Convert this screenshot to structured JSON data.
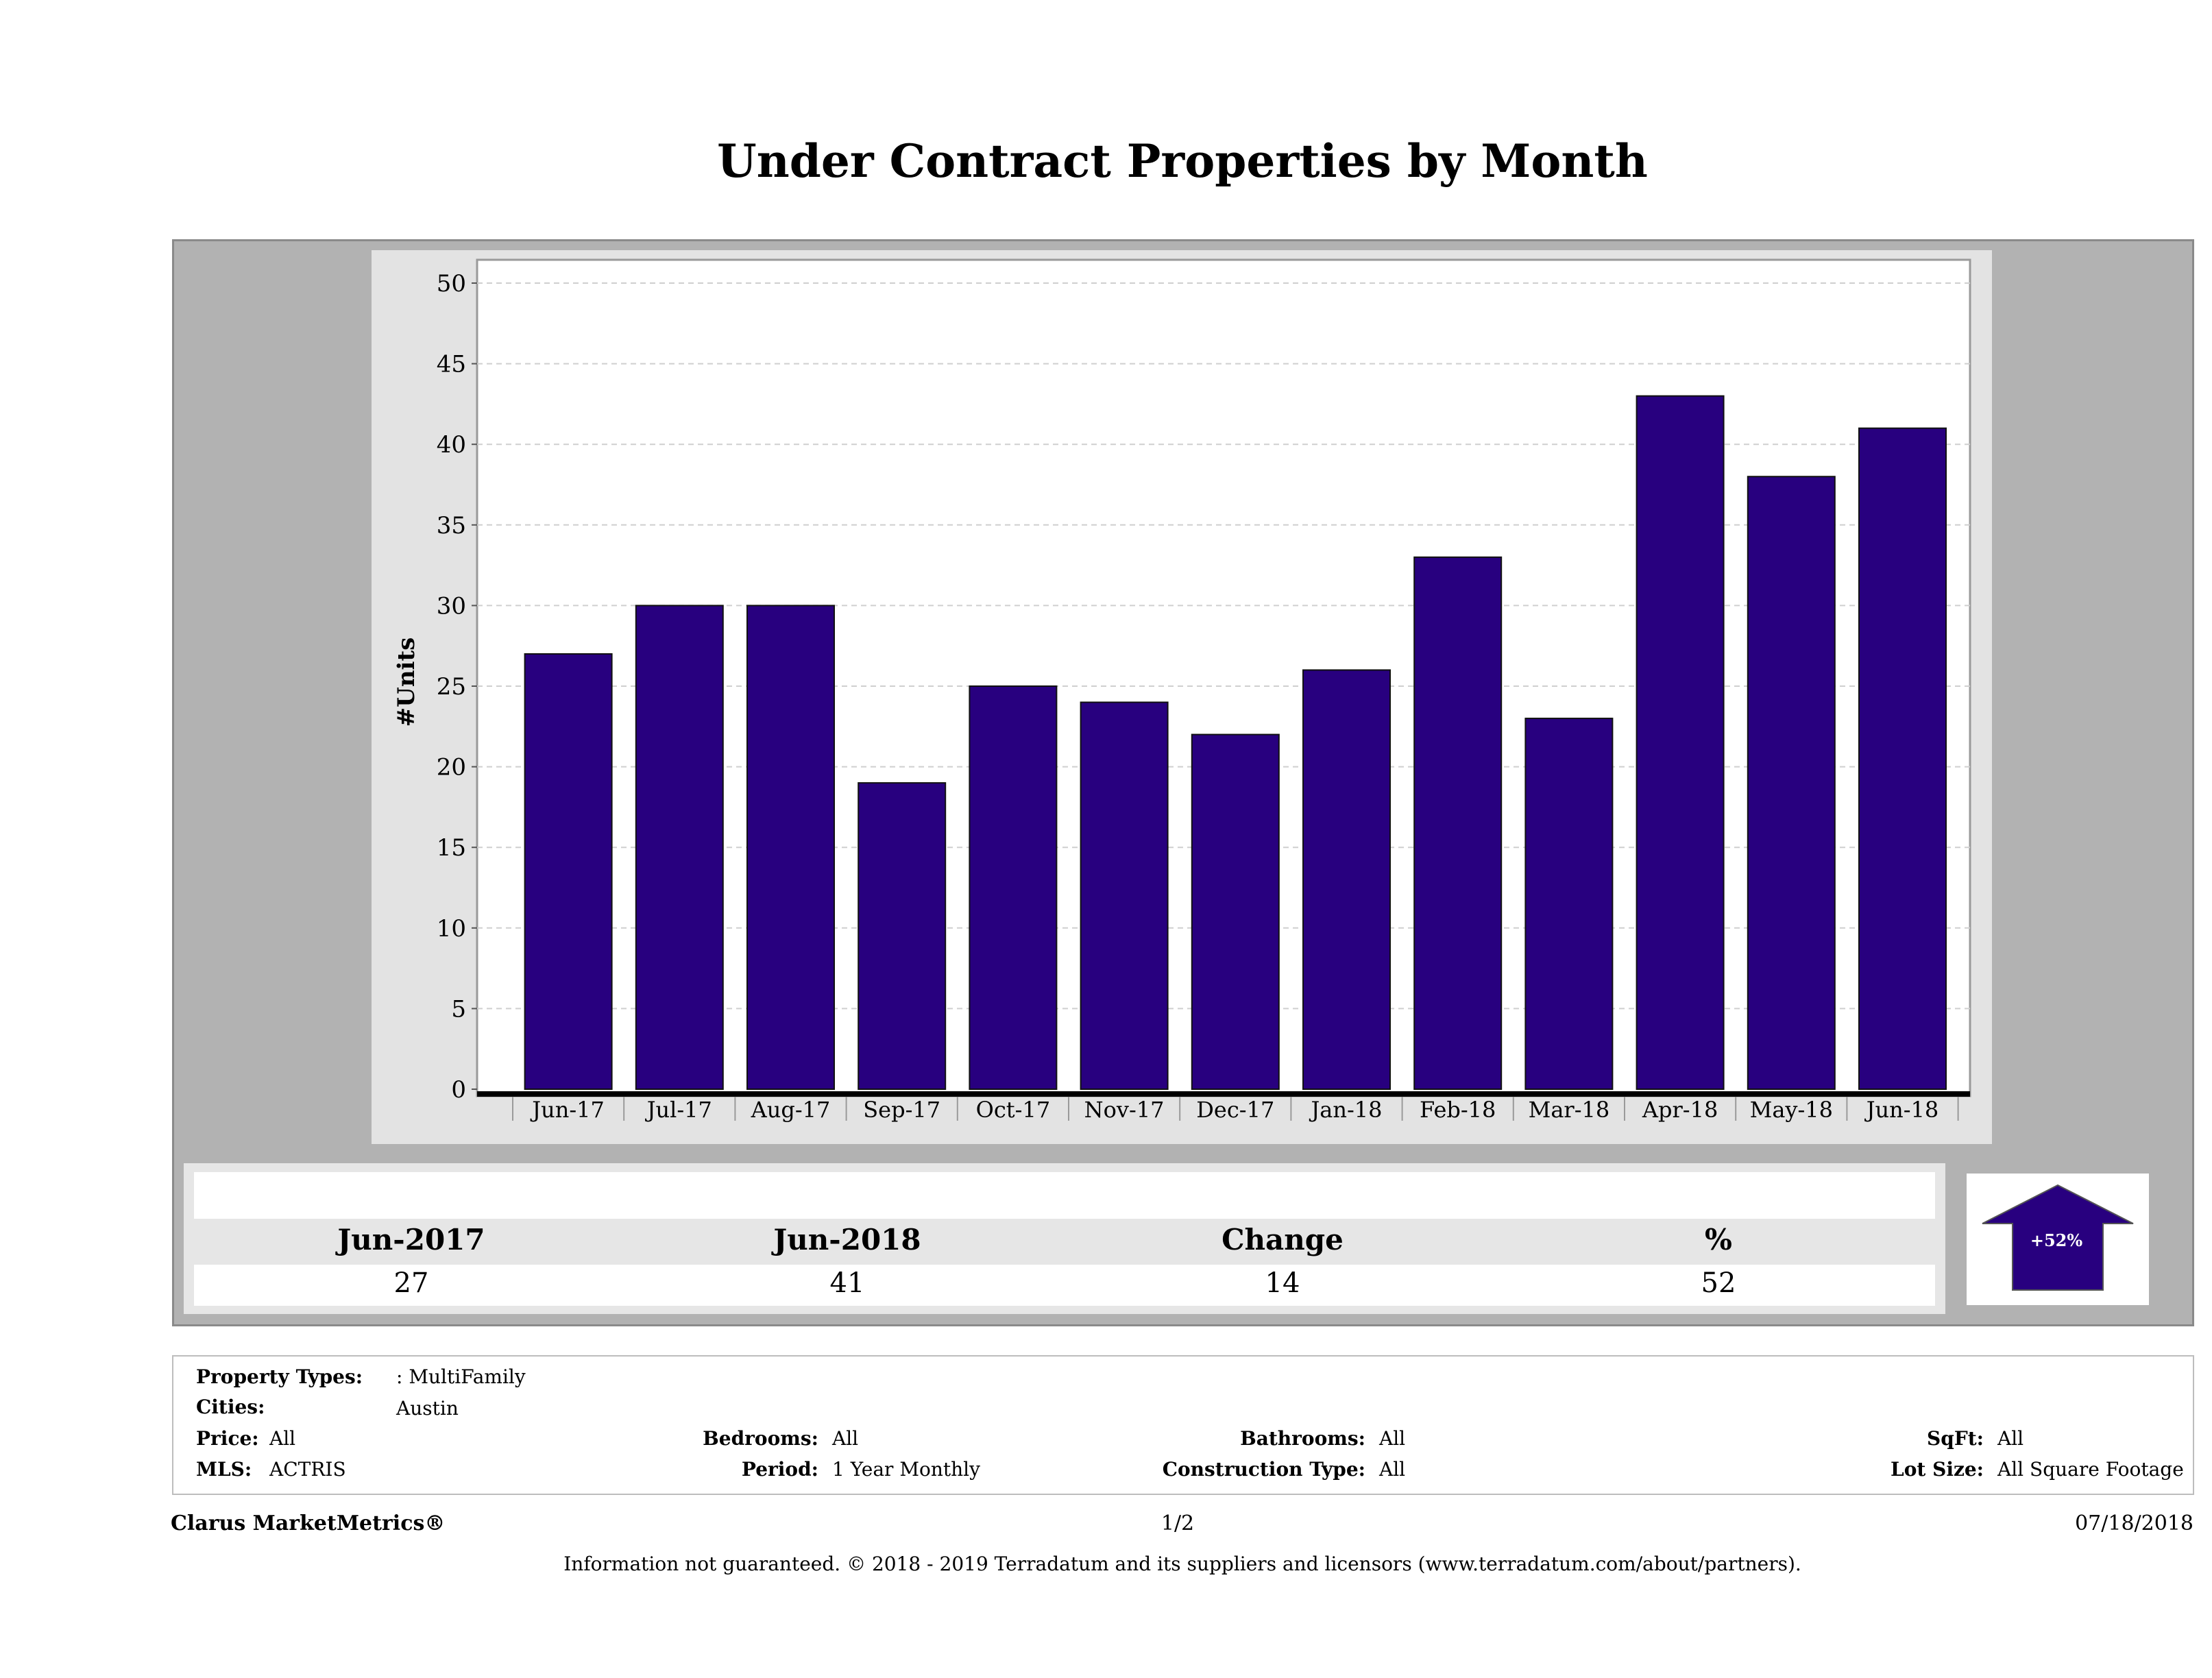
{
  "title": "Under Contract Properties by Month",
  "chart_data": {
    "type": "bar",
    "categories": [
      "Jun-17",
      "Jul-17",
      "Aug-17",
      "Sep-17",
      "Oct-17",
      "Nov-17",
      "Dec-17",
      "Jan-18",
      "Feb-18",
      "Mar-18",
      "Apr-18",
      "May-18",
      "Jun-18"
    ],
    "values": [
      27,
      30,
      30,
      19,
      25,
      24,
      22,
      26,
      33,
      23,
      43,
      38,
      41
    ],
    "ylabel": "#Units",
    "xlabel": "",
    "ylim": [
      0,
      50
    ],
    "yticks": [
      0,
      5,
      10,
      15,
      20,
      25,
      30,
      35,
      40,
      45,
      50
    ],
    "grid": true,
    "bar_color": "#28007f"
  },
  "summary": {
    "headers": [
      "Jun-2017",
      "Jun-2018",
      "Change",
      "%"
    ],
    "values": [
      "27",
      "41",
      "14",
      "52"
    ],
    "badge": "+52%"
  },
  "criteria": {
    "property_types_label": "Property Types:",
    "property_types_value": ": MultiFamily",
    "cities_label": "Cities:",
    "cities_value": "Austin",
    "price_label": "Price:",
    "price_value": "All",
    "bedrooms_label": "Bedrooms:",
    "bedrooms_value": "All",
    "bathrooms_label": "Bathrooms:",
    "bathrooms_value": "All",
    "sqft_label": "SqFt:",
    "sqft_value": "All",
    "mls_label": "MLS:",
    "mls_value": "ACTRIS",
    "period_label": "Period:",
    "period_value": "1 Year Monthly",
    "construction_label": "Construction Type:",
    "construction_value": "All",
    "lot_label": "Lot Size:",
    "lot_value": "All Square Footage"
  },
  "footer": {
    "brand": "Clarus MarketMetrics®",
    "page": "1/2",
    "date": "07/18/2018",
    "disclaimer": "Information not guaranteed. © 2018 - 2019 Terradatum and its suppliers and licensors (www.terradatum.com/about/partners)."
  }
}
